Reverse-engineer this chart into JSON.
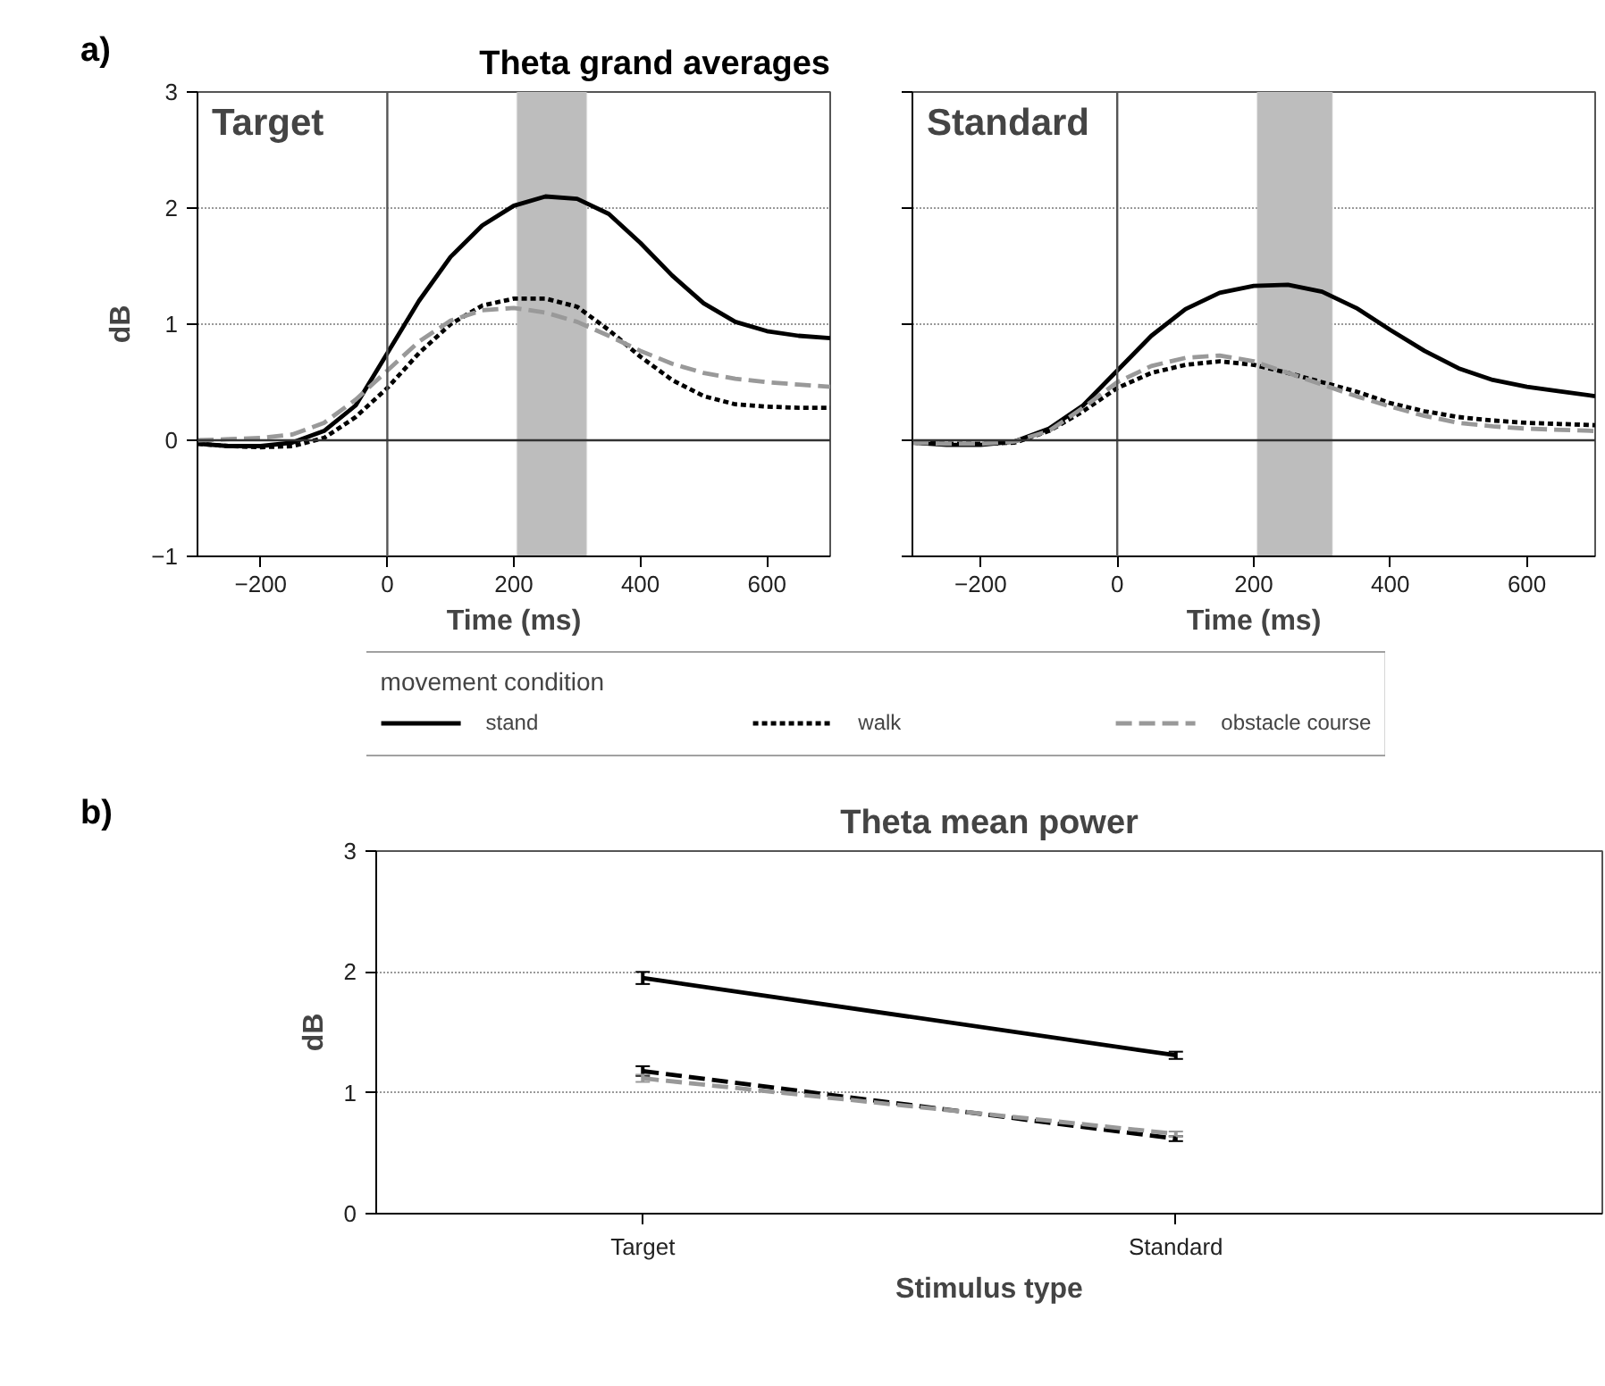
{
  "chart_data": [
    {
      "type": "line",
      "title": "Theta grand averages",
      "annotations": [
        "a)",
        "Target"
      ],
      "xlabel": "Time (ms)",
      "ylabel": "dB",
      "legend_title": "movement condition",
      "legend": "bottom",
      "xlim": [
        -300,
        700
      ],
      "ylim": [
        -1,
        3
      ],
      "xticks": [
        -200,
        0,
        200,
        400,
        600
      ],
      "yticks": [
        -1,
        0,
        1,
        2,
        3
      ],
      "grid": "y",
      "ref_lines": [
        {
          "axis": "x",
          "value": 0,
          "color": "#555555"
        },
        {
          "axis": "y",
          "value": 0,
          "color": "#333333"
        }
      ],
      "bands": [
        {
          "axis": "x",
          "from": 205,
          "to": 315,
          "color": "#bdbdbd"
        }
      ],
      "x": [
        -300,
        -250,
        -200,
        -150,
        -100,
        -50,
        0,
        50,
        100,
        150,
        200,
        250,
        300,
        350,
        400,
        450,
        500,
        550,
        600,
        650,
        700
      ],
      "series": [
        {
          "name": "stand",
          "color": "#000000",
          "line_style": "solid",
          "values": [
            -0.03,
            -0.05,
            -0.05,
            -0.02,
            0.08,
            0.3,
            0.75,
            1.2,
            1.58,
            1.85,
            2.02,
            2.1,
            2.08,
            1.95,
            1.7,
            1.42,
            1.18,
            1.02,
            0.94,
            0.9,
            0.88
          ]
        },
        {
          "name": "walk",
          "color": "#000000",
          "line_style": "dotted",
          "values": [
            -0.03,
            -0.05,
            -0.06,
            -0.05,
            0.02,
            0.2,
            0.45,
            0.75,
            1.0,
            1.16,
            1.22,
            1.22,
            1.15,
            0.95,
            0.72,
            0.52,
            0.38,
            0.31,
            0.29,
            0.28,
            0.28
          ]
        },
        {
          "name": "obstacle course",
          "color": "#999999",
          "line_style": "dashed",
          "values": [
            0.0,
            0.01,
            0.02,
            0.05,
            0.15,
            0.35,
            0.6,
            0.85,
            1.03,
            1.12,
            1.14,
            1.1,
            1.02,
            0.9,
            0.77,
            0.66,
            0.58,
            0.53,
            0.5,
            0.48,
            0.46
          ]
        }
      ]
    },
    {
      "type": "line",
      "annotations": [
        "Standard"
      ],
      "xlabel": "Time (ms)",
      "tick_labels": "x",
      "xlim": [
        -300,
        700
      ],
      "ylim": [
        -1,
        3
      ],
      "xticks": [
        -200,
        0,
        200,
        400,
        600
      ],
      "yticks": [
        {
          "value": -1,
          "label": null
        },
        {
          "value": 0,
          "label": null
        },
        {
          "value": 1,
          "label": null
        },
        {
          "value": 2,
          "label": null
        },
        {
          "value": 3,
          "label": null
        }
      ],
      "grid": "y",
      "ref_lines": [
        {
          "axis": "x",
          "value": 0,
          "color": "#555555"
        },
        {
          "axis": "y",
          "value": 0,
          "color": "#333333"
        }
      ],
      "bands": [
        {
          "axis": "x",
          "from": 205,
          "to": 315,
          "color": "#bdbdbd"
        }
      ],
      "x": [
        -300,
        -250,
        -200,
        -150,
        -100,
        -50,
        0,
        50,
        100,
        150,
        200,
        250,
        300,
        350,
        400,
        450,
        500,
        550,
        600,
        650,
        700
      ],
      "series": [
        {
          "color": "#000000",
          "line_style": "solid",
          "values": [
            -0.02,
            -0.04,
            -0.04,
            -0.01,
            0.1,
            0.3,
            0.6,
            0.9,
            1.13,
            1.27,
            1.33,
            1.34,
            1.28,
            1.14,
            0.95,
            0.77,
            0.62,
            0.52,
            0.46,
            0.42,
            0.38
          ]
        },
        {
          "color": "#000000",
          "line_style": "dotted",
          "values": [
            -0.02,
            -0.03,
            -0.03,
            -0.02,
            0.08,
            0.25,
            0.45,
            0.58,
            0.65,
            0.68,
            0.65,
            0.58,
            0.5,
            0.42,
            0.32,
            0.25,
            0.2,
            0.17,
            0.15,
            0.14,
            0.13
          ]
        },
        {
          "color": "#999999",
          "line_style": "dashed",
          "values": [
            -0.02,
            -0.03,
            -0.03,
            -0.01,
            0.08,
            0.28,
            0.5,
            0.64,
            0.71,
            0.73,
            0.68,
            0.58,
            0.48,
            0.38,
            0.29,
            0.21,
            0.15,
            0.12,
            0.1,
            0.09,
            0.08
          ]
        }
      ]
    },
    {
      "type": "line",
      "title": "Theta mean power",
      "annotations": [
        "b)"
      ],
      "xlabel": "Stimulus type",
      "ylabel": "dB",
      "categories": [
        "Target",
        "Standard"
      ],
      "ylim": [
        0,
        3
      ],
      "yticks": [
        0,
        1,
        2,
        3
      ],
      "grid": "y",
      "series": [
        {
          "color": "#000000",
          "line_style": "solid",
          "values": [
            1.95,
            1.31
          ],
          "errors": [
            0.05,
            0.03
          ]
        },
        {
          "color": "#000000",
          "line_style": "dashed",
          "values": [
            1.18,
            0.62
          ],
          "errors": [
            0.04,
            0.02
          ]
        },
        {
          "color": "#999999",
          "line_style": "dashed",
          "values": [
            1.12,
            0.66
          ],
          "errors": [
            0.03,
            0.02
          ]
        }
      ]
    }
  ]
}
